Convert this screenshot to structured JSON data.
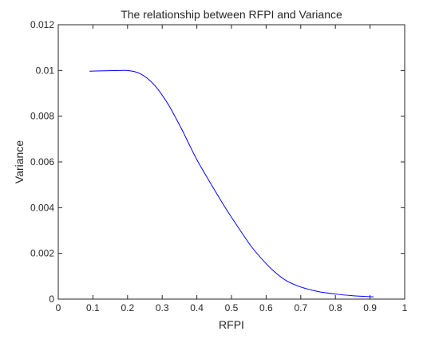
{
  "chart_data": {
    "type": "line",
    "title": "The relationship between RFPI and Variance",
    "xlabel": "RFPI",
    "ylabel": "Variance",
    "xlim": [
      0,
      1
    ],
    "ylim": [
      0,
      0.012
    ],
    "xticks": [
      "0",
      "0.1",
      "0.2",
      "0.3",
      "0.4",
      "0.5",
      "0.6",
      "0.7",
      "0.8",
      "0.9",
      "1"
    ],
    "yticks": [
      "0",
      "0.002",
      "0.004",
      "0.006",
      "0.008",
      "0.01",
      "0.012"
    ],
    "grid": false,
    "legend": "none",
    "series": [
      {
        "color": "#0000ff",
        "x": [
          0.09,
          0.12,
          0.15,
          0.18,
          0.2,
          0.22,
          0.24,
          0.26,
          0.28,
          0.3,
          0.32,
          0.34,
          0.36,
          0.38,
          0.4,
          0.42,
          0.45,
          0.48,
          0.5,
          0.53,
          0.56,
          0.6,
          0.63,
          0.66,
          0.7,
          0.75,
          0.8,
          0.85,
          0.91
        ],
        "y": [
          0.00997,
          0.00998,
          0.00999,
          0.01,
          0.01,
          0.00995,
          0.00983,
          0.00962,
          0.00932,
          0.00892,
          0.00845,
          0.0079,
          0.00732,
          0.0067,
          0.0061,
          0.00557,
          0.0048,
          0.00405,
          0.00358,
          0.0029,
          0.00225,
          0.00155,
          0.00112,
          0.00079,
          0.00053,
          0.00033,
          0.00022,
          0.00015,
          0.0001
        ]
      }
    ]
  }
}
